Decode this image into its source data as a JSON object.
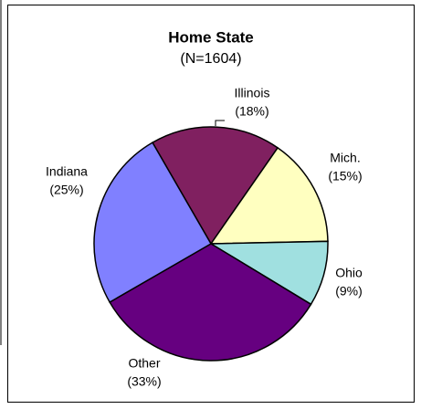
{
  "chart_data": {
    "type": "pie",
    "title": "Home State",
    "subtitle": "(N=1604)",
    "categories": [
      "Illinois",
      "Mich.",
      "Ohio",
      "Other",
      "Indiana"
    ],
    "values": [
      18,
      15,
      9,
      33,
      25
    ],
    "value_labels": [
      "(18%)",
      "(15%)",
      "(9%)",
      "(33%)",
      "(25%)"
    ],
    "colors": [
      "#802060",
      "#ffffc0",
      "#a0e0e0",
      "#660080",
      "#8080ff"
    ]
  }
}
